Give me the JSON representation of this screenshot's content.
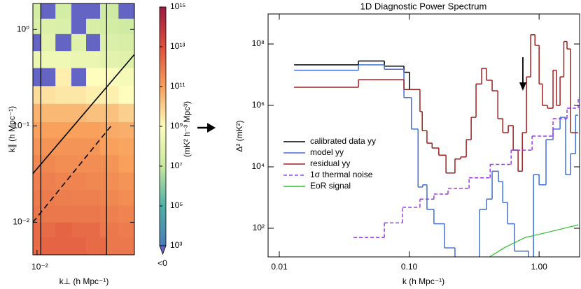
{
  "chart_data": [
    {
      "type": "heatmap",
      "xlabel": "k⊥ (h Mpc⁻¹)",
      "ylabel": "k∥ (h Mpc⁻¹)",
      "xlim": [
        0.009,
        0.12
      ],
      "ylim": [
        0.0046,
        1.86
      ],
      "xscale": "log",
      "yscale": "log",
      "xticks": [
        {
          "value": 0.01,
          "label": "10⁻²"
        }
      ],
      "yticks": [
        {
          "value": 1,
          "label": "10⁰"
        },
        {
          "value": 0.1,
          "label": "10⁻¹"
        },
        {
          "value": 0.01,
          "label": "10⁻²"
        }
      ],
      "kperp_edges": [
        0.009,
        0.011,
        0.016,
        0.024,
        0.035,
        0.05,
        0.059,
        0.08,
        0.12
      ],
      "kpar_edges": [
        0.0046,
        0.007,
        0.01,
        0.015,
        0.022,
        0.033,
        0.05,
        0.075,
        0.11,
        0.17,
        0.26,
        0.4,
        0.6,
        0.9,
        1.3,
        1.86
      ],
      "values": [
        [
          2000000000000.0,
          3000000000000.0,
          3000000000000.0,
          3000000000000.0,
          2000000000000.0,
          2000000000000.0,
          1000000000000.0,
          1000000000000.0
        ],
        [
          2000000000000.0,
          2000000000000.0,
          3000000000000.0,
          2000000000000.0,
          2000000000000.0,
          1000000000000.0,
          1000000000000.0,
          800000000000.0
        ],
        [
          1000000000000.0,
          1000000000000.0,
          1000000000000.0,
          1000000000000.0,
          1000000000000.0,
          800000000000.0,
          600000000000.0,
          500000000000.0
        ],
        [
          800000000000.0,
          800000000000.0,
          700000000000.0,
          600000000000.0,
          600000000000.0,
          500000000000.0,
          400000000000.0,
          300000000000.0
        ],
        [
          600000000000.0,
          600000000000.0,
          500000000000.0,
          500000000000.0,
          400000000000.0,
          400000000000.0,
          300000000000.0,
          200000000000.0
        ],
        [
          400000000000.0,
          400000000000.0,
          300000000000.0,
          300000000000.0,
          300000000000.0,
          300000000000.0,
          200000000000.0,
          100000000000.0
        ],
        [
          200000000000.0,
          200000000000.0,
          200000000000.0,
          200000000000.0,
          200000000000.0,
          100000000000.0,
          100000000000.0,
          80000000000.0
        ],
        [
          100000000000.0,
          100000000000.0,
          100000000000.0,
          100000000000.0,
          100000000000.0,
          80000000000.0,
          60000000000.0,
          50000000000.0
        ],
        [
          40000000000.0,
          30000000000.0,
          30000000000.0,
          30000000000.0,
          20000000000.0,
          20000000000.0,
          20000000000.0,
          10000000000.0
        ],
        [
          5000000000.0,
          4000000000.0,
          3000000000.0,
          3000000000.0,
          2000000000.0,
          2000000000.0,
          2000000000.0,
          1000000000.0
        ],
        [
          -100000000.0,
          -100000000.0,
          2000000000.0,
          -100000000.0,
          1000000000.0,
          1000000000.0,
          800000000.0,
          500000000.0
        ],
        [
          200000000.0,
          300000000.0,
          300000000.0,
          200000000.0,
          200000000.0,
          100000000.0,
          100000000.0,
          80000000.0
        ],
        [
          -10000000.0,
          100000000.0,
          -10000000.0,
          80000000.0,
          -10000000.0,
          60000000.0,
          50000000.0,
          40000000.0
        ],
        [
          50000000.0,
          60000000.0,
          50000000.0,
          -10000000.0,
          40000000.0,
          30000000.0,
          30000000.0,
          20000000.0
        ],
        [
          30000000.0,
          -10000000.0,
          30000000.0,
          -10000000.0,
          -10000000.0,
          20000000.0,
          20000000.0,
          -10000000.0
        ]
      ],
      "lines": [
        {
          "x": [
            0.009,
            0.12
          ],
          "y": [
            0.032,
            0.55
          ],
          "linestyle": "solid"
        },
        {
          "x": [
            0.009,
            0.068
          ],
          "y": [
            0.01,
            0.103
          ],
          "linestyle": "dashed"
        }
      ],
      "vlines": [
        0.011,
        0.059
      ],
      "colormap": [
        "#4a7cb8",
        "#4fb0a8",
        "#c7e89e",
        "#fefdbd",
        "#f8a05c",
        "#de4f3c",
        "#9e1a42"
      ],
      "under_color": "#6464c4",
      "clim": [
        1000.0,
        1000000000000000.0
      ],
      "colorbar_label": "(mK² h⁻³ Mpc³)",
      "cticks": [
        {
          "value": 1000000000000000.0,
          "label": "10¹⁵"
        },
        {
          "value": 10000000000000.0,
          "label": "10¹³"
        },
        {
          "value": 100000000000.0,
          "label": "10¹¹"
        },
        {
          "value": 1000000000.0,
          "label": "10⁹"
        },
        {
          "value": 10000000.0,
          "label": "10⁷"
        },
        {
          "value": 100000.0,
          "label": "10⁵"
        },
        {
          "value": 1000.0,
          "label": "10³"
        }
      ],
      "under_label": "<0"
    },
    {
      "type": "line",
      "title": "1D Diagnostic Power Spectrum",
      "xlabel": "k (h Mpc⁻¹)",
      "ylabel": "Δ² (mK²)",
      "xscale": "log",
      "yscale": "log",
      "xlim": [
        0.0082,
        2.05
      ],
      "ylim": [
        11.7,
        950000000.0
      ],
      "xticks": [
        0.01,
        {
          "value": 0.1,
          "label": "0.10"
        },
        {
          "value": 1,
          "label": "1.00"
        }
      ],
      "yticks": [
        {
          "value": 100,
          "label": "10²"
        },
        {
          "value": 10000,
          "label": "10⁴"
        },
        {
          "value": 1000000,
          "label": "10⁶"
        },
        {
          "value": 100000000,
          "label": "10⁸"
        }
      ],
      "series": [
        {
          "name": "calibrated data yy",
          "color": "#000000",
          "drawstyle": "steps-post",
          "linestyle": "solid",
          "x": [
            0.013,
            0.0407,
            0.0644,
            0.0911,
            0.1006,
            0.121
          ],
          "values": [
            21000000.0,
            28000000.0,
            19000000.0,
            12000000.0,
            3300000.0,
            3300000.0
          ]
        },
        {
          "name": "model yy",
          "color": "#3f6fd6",
          "drawstyle": "steps-post",
          "linestyle": "solid",
          "x": [
            0.013,
            0.0407,
            0.0644,
            0.0911,
            0.104,
            0.117,
            0.127,
            0.137,
            0.155,
            0.187,
            0.225,
            0.348,
            0.394,
            0.435,
            0.487,
            0.525,
            0.572,
            0.647,
            0.83,
            0.906,
            1.0,
            1.13,
            1.28,
            1.45,
            1.6,
            1.75,
            1.91,
            2.0
          ],
          "values": [
            14000000.0,
            21000000.0,
            15000000.0,
            1800000.0,
            170000.0,
            2200,
            2600,
            410,
            140,
            23,
            6.3,
            410,
            890,
            7200,
            3300,
            690,
            140,
            18,
            10,
            5600,
            2600,
            77000,
            170000,
            410000,
            5600,
            27000,
            480000,
            480000
          ]
        },
        {
          "name": "residual yy",
          "color": "#a01e1e",
          "drawstyle": "steps-post",
          "linestyle": "solid",
          "x": [
            0.013,
            0.0407,
            0.0911,
            0.121,
            0.126,
            0.137,
            0.15,
            0.169,
            0.192,
            0.225,
            0.249,
            0.275,
            0.3,
            0.327,
            0.361,
            0.394,
            0.435,
            0.481,
            0.525,
            0.579,
            0.632,
            0.689,
            0.743,
            0.8,
            0.861,
            0.929,
            1.0,
            1.06,
            1.16,
            1.28,
            1.36,
            1.45,
            1.55,
            1.64,
            1.75,
            1.86,
            2.0
          ],
          "values": [
            3900000.0,
            6900000.0,
            3300000.0,
            630000.0,
            150000.0,
            59000,
            41000,
            24000,
            6300,
            18000,
            21000,
            77000,
            410000.0,
            5000000.0,
            16000000.0,
            6600000.0,
            3000000.0,
            370000.0,
            130000.0,
            220000.0,
            35000,
            7200,
            130000.0,
            8500000.0,
            200000000.0,
            90000000.0,
            5000000.0,
            1000000.0,
            810000.0,
            14000000.0,
            1000000.0,
            8500000.0,
            120000000.0,
            69000000.0,
            130000.0,
            130000.0,
            130000.0
          ]
        },
        {
          "name": "1σ thermal noise",
          "color": "#9b3cf0",
          "drawstyle": "steps-post",
          "linestyle": "dashed",
          "x": [
            0.0373,
            0.0644,
            0.0889,
            0.121,
            0.155,
            0.199,
            0.289,
            0.42,
            0.609,
            0.883,
            1.28,
            1.64,
            2.0
          ],
          "values": [
            50,
            150,
            480,
            890,
            1300,
            2000,
            4400,
            12000,
            35000,
            100000,
            370000,
            810000,
            1800000
          ]
        },
        {
          "name": "EoR signal",
          "color": "#2fbf2f",
          "drawstyle": "line",
          "linestyle": "solid",
          "x": [
            0.42,
            0.538,
            0.78,
            1.13,
            1.64,
            2.0
          ],
          "values": [
            12,
            23,
            50,
            72,
            105,
            130
          ]
        }
      ],
      "arrow": {
        "x": 0.75,
        "y": [
          37000000.0,
          3000000.0
        ]
      }
    }
  ]
}
